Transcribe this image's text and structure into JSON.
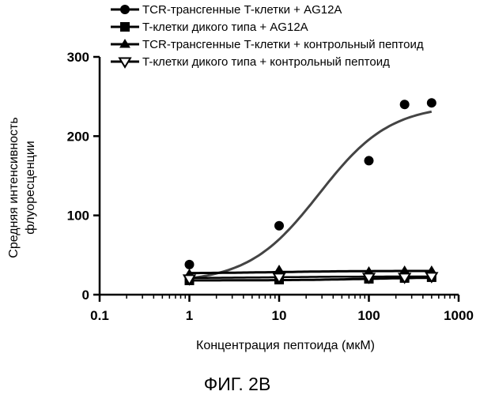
{
  "figure": {
    "caption": "ФИГ. 2B"
  },
  "chart_data": {
    "type": "scatter",
    "title": "",
    "xlabel": "Концентрация пептоида (мкМ)",
    "ylabel": [
      "Средняя интенсивность",
      "флуоресценции"
    ],
    "xscale": "log",
    "xlim": [
      0.1,
      1000
    ],
    "ylim": [
      0,
      300
    ],
    "xticks": [
      0.1,
      1,
      10,
      100,
      1000
    ],
    "xtick_labels": [
      "0.1",
      "1",
      "10",
      "100",
      "1000"
    ],
    "yticks": [
      0,
      100,
      200,
      300
    ],
    "ytick_labels": [
      "0",
      "100",
      "200",
      "300"
    ],
    "grid": false,
    "legend_position": "top",
    "series": [
      {
        "name": "TCR-трансгенные T-клетки + AG12A",
        "marker": "circle",
        "x": [
          1,
          10,
          100,
          250,
          500
        ],
        "y": [
          38,
          87,
          169,
          240,
          242
        ],
        "fit": {
          "bottom": 15,
          "top": 240,
          "ec50": 28,
          "hill": 1.1
        }
      },
      {
        "name": "T-клетки дикого типа + AG12A",
        "marker": "square",
        "x": [
          1,
          10,
          100,
          250,
          500
        ],
        "y": [
          18,
          19,
          20,
          21,
          22
        ],
        "fit": {
          "bottom": 18,
          "top": 22,
          "ec50": 100,
          "hill": 1.0
        }
      },
      {
        "name": "TCR-трансгенные T-клетки + контрольный пептоид",
        "marker": "triangle-up",
        "x": [
          1,
          10,
          100,
          250,
          500
        ],
        "y": [
          26,
          31,
          29,
          30,
          30
        ],
        "fit": {
          "bottom": 27,
          "top": 30,
          "ec50": 10,
          "hill": 1.0
        }
      },
      {
        "name": "T-клетки дикого типа + контрольный пептоид",
        "marker": "triangle-down",
        "x": [
          1,
          10,
          100,
          250,
          500
        ],
        "y": [
          20,
          22,
          22,
          22,
          23
        ],
        "fit": {
          "bottom": 21,
          "top": 23,
          "ec50": 10,
          "hill": 1.0
        }
      }
    ]
  }
}
